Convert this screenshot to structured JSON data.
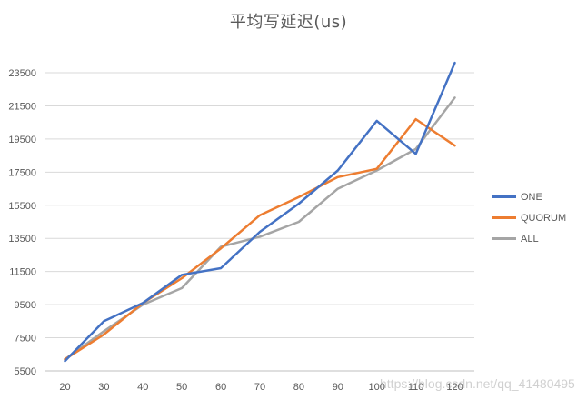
{
  "chart_data": {
    "type": "line",
    "title": "平均写延迟(us)",
    "xlabel": "",
    "ylabel": "",
    "categories": [
      "20",
      "30",
      "40",
      "50",
      "60",
      "70",
      "80",
      "90",
      "100",
      "110",
      "120"
    ],
    "y_ticks": [
      "5500",
      "7500",
      "9500",
      "11500",
      "13500",
      "15500",
      "17500",
      "19500",
      "21500",
      "23500"
    ],
    "ylim": [
      5500,
      25000
    ],
    "grid": true,
    "legend_position": "right",
    "series": [
      {
        "name": "ONE",
        "color": "#4472C4",
        "values": [
          6100,
          8500,
          9600,
          11300,
          11700,
          13900,
          15600,
          17600,
          20600,
          18600,
          24100
        ]
      },
      {
        "name": "QUORUM",
        "color": "#ED7D31",
        "values": [
          6200,
          7700,
          9600,
          11100,
          12900,
          14900,
          16000,
          17200,
          17700,
          20700,
          19100
        ]
      },
      {
        "name": "ALL",
        "color": "#A5A5A5",
        "values": [
          6200,
          7900,
          9500,
          10500,
          13000,
          13600,
          14500,
          16500,
          17600,
          18900,
          22000
        ]
      }
    ]
  },
  "watermark": "https://blog.csdn.net/qq_41480495"
}
